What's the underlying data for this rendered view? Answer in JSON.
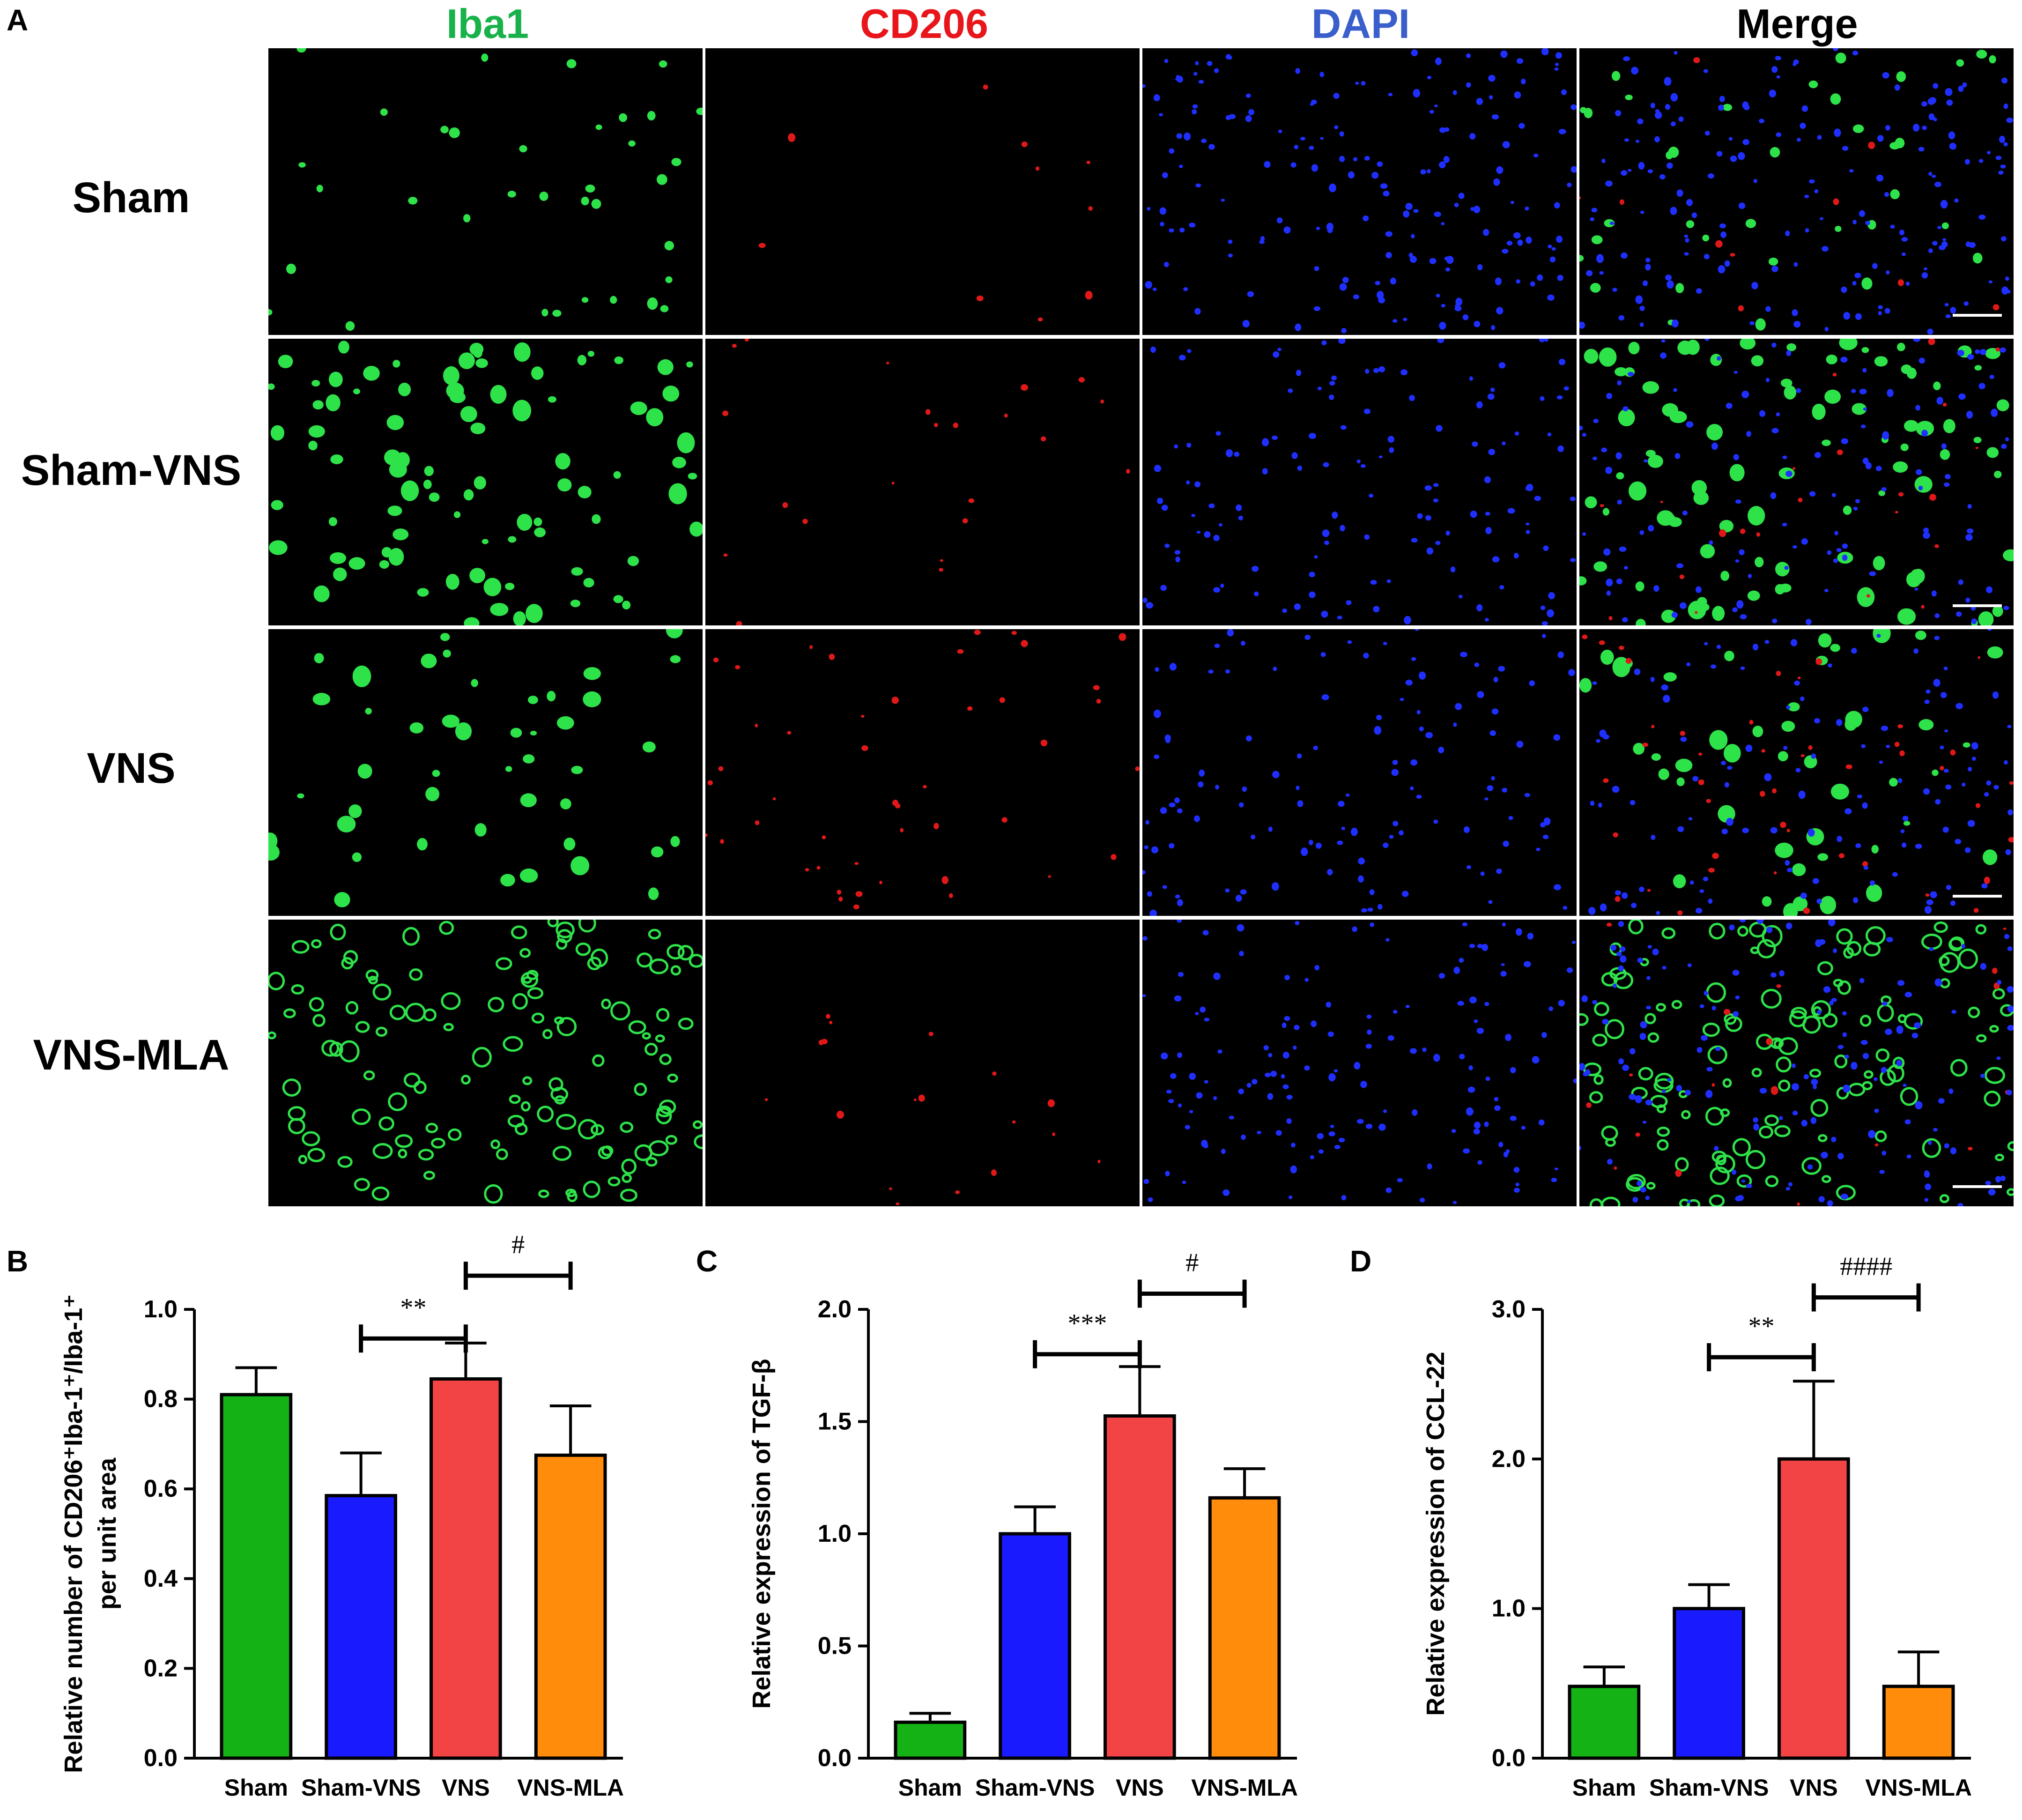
{
  "panels": {
    "A": "A",
    "B": "B",
    "C": "C",
    "D": "D"
  },
  "micrograph": {
    "channels": [
      {
        "label": "Iba1",
        "color": "#19b24a"
      },
      {
        "label": "CD206",
        "color": "#e8161b"
      },
      {
        "label": "DAPI",
        "color": "#3a5fcd"
      },
      {
        "label": "Merge",
        "color": "#000000"
      }
    ],
    "groups": [
      "Sham",
      "Sham-VNS",
      "VNS",
      "VNS-MLA"
    ]
  },
  "chart_data": [
    {
      "type": "bar",
      "panel": "B",
      "categories": [
        "Sham",
        "Sham-VNS",
        "VNS",
        "VNS-MLA"
      ],
      "values": [
        0.81,
        0.585,
        0.845,
        0.675
      ],
      "errors": [
        0.06,
        0.095,
        0.08,
        0.11
      ],
      "colors": [
        "#15b215",
        "#1a1aff",
        "#f24444",
        "#ff8c0a"
      ],
      "ylabel_lines": [
        "Relative number of CD206⁺Iba-1⁺/Iba-1⁺",
        "per unit area"
      ],
      "ylim": [
        0,
        1.0
      ],
      "ticks": [
        0.0,
        0.2,
        0.4,
        0.6,
        0.8,
        1.0
      ],
      "tick_labels": [
        "0.0",
        "0.2",
        "0.4",
        "0.6",
        "0.8",
        "1.0"
      ],
      "significance": [
        {
          "from": 1,
          "to": 2,
          "label": "**",
          "y": 0.935
        },
        {
          "from": 2,
          "to": 3,
          "label": "#",
          "y": 1.075
        }
      ]
    },
    {
      "type": "bar",
      "panel": "C",
      "categories": [
        "Sham",
        "Sham-VNS",
        "VNS",
        "VNS-MLA"
      ],
      "values": [
        0.16,
        1.0,
        1.525,
        1.16
      ],
      "errors": [
        0.04,
        0.12,
        0.22,
        0.13
      ],
      "colors": [
        "#15b215",
        "#1a1aff",
        "#f24444",
        "#ff8c0a"
      ],
      "ylabel_lines": [
        "Relative expression of TGF-β"
      ],
      "ylim": [
        0,
        2.0
      ],
      "ticks": [
        0.0,
        0.5,
        1.0,
        1.5,
        2.0
      ],
      "tick_labels": [
        "0.0",
        "0.5",
        "1.0",
        "1.5",
        "2.0"
      ],
      "significance": [
        {
          "from": 1,
          "to": 2,
          "label": "***",
          "y": 1.8
        },
        {
          "from": 2,
          "to": 3,
          "label": "#",
          "y": 2.07
        }
      ]
    },
    {
      "type": "bar",
      "panel": "D",
      "categories": [
        "Sham",
        "Sham-VNS",
        "VNS",
        "VNS-MLA"
      ],
      "values": [
        0.48,
        1.0,
        2.0,
        0.48
      ],
      "errors": [
        0.13,
        0.16,
        0.52,
        0.23
      ],
      "colors": [
        "#15b215",
        "#1a1aff",
        "#f24444",
        "#ff8c0a"
      ],
      "ylabel_lines": [
        "Relative expression of CCL-22"
      ],
      "ylim": [
        0,
        3.0
      ],
      "ticks": [
        0.0,
        1.0,
        2.0,
        3.0
      ],
      "tick_labels": [
        "0.0",
        "1.0",
        "2.0",
        "3.0"
      ],
      "significance": [
        {
          "from": 1,
          "to": 2,
          "label": "**",
          "y": 2.68
        },
        {
          "from": 2,
          "to": 3,
          "label": "####",
          "y": 3.08
        }
      ]
    }
  ]
}
